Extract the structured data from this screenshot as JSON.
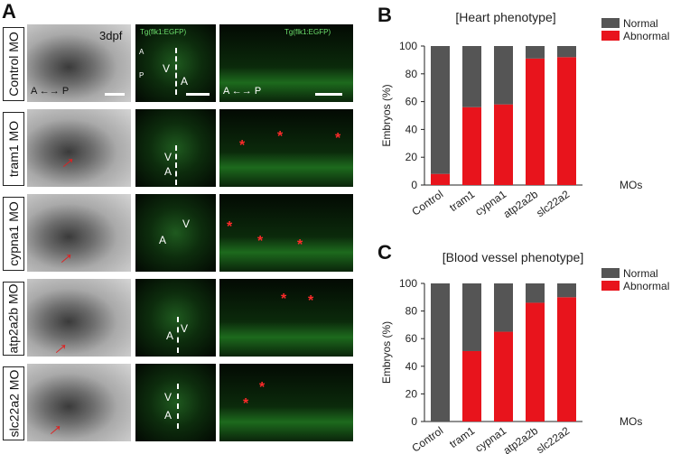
{
  "panel_a": {
    "letter": "A",
    "stage": "3dpf",
    "transgene": "Tg(flk1:EGFP)",
    "rows": [
      "Control MO",
      "tram1 MO",
      "cypna1 MO",
      "atp2a2b MO",
      "slc22a2 MO"
    ],
    "axis_ap": "A ←→ P",
    "axis_a": "A",
    "axis_p": "P",
    "label_v": "V",
    "label_a": "A",
    "asterisk": "*"
  },
  "chart_data": [
    {
      "panel": "B",
      "type": "bar",
      "stacked": true,
      "title": "[Heart phenotype]",
      "ylabel": "Embryos (%)",
      "xlabel": "MOs",
      "categories": [
        "Control",
        "tram1",
        "cypna1",
        "atp2a2b",
        "slc22a2"
      ],
      "ylim": [
        0,
        100
      ],
      "yticks": [
        0,
        20,
        40,
        60,
        80,
        100
      ],
      "series": [
        {
          "name": "Abnormal",
          "color": "#e8141c",
          "values": [
            8,
            56,
            58,
            91,
            92
          ]
        },
        {
          "name": "Normal",
          "color": "#555555",
          "values": [
            92,
            44,
            42,
            9,
            8
          ]
        }
      ],
      "legend": [
        "Normal",
        "Abnormal"
      ],
      "legend_position": "top-right"
    },
    {
      "panel": "C",
      "type": "bar",
      "stacked": true,
      "title": "[Blood vessel phenotype]",
      "ylabel": "Embryos (%)",
      "xlabel": "MOs",
      "categories": [
        "Control",
        "tram1",
        "cypna1",
        "atp2a2b",
        "slc22a2"
      ],
      "ylim": [
        0,
        100
      ],
      "yticks": [
        0,
        20,
        40,
        60,
        80,
        100
      ],
      "series": [
        {
          "name": "Abnormal",
          "color": "#e8141c",
          "values": [
            0,
            51,
            65,
            86,
            90
          ]
        },
        {
          "name": "Normal",
          "color": "#555555",
          "values": [
            100,
            49,
            35,
            14,
            10
          ]
        }
      ],
      "legend": [
        "Normal",
        "Abnormal"
      ],
      "legend_position": "top-right"
    }
  ]
}
